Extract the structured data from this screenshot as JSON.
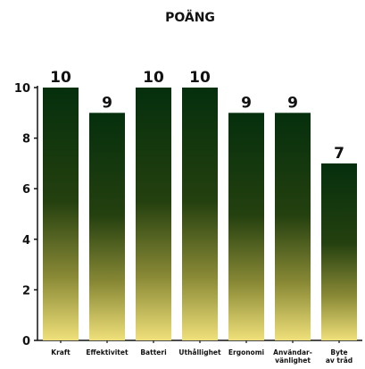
{
  "chart_data": {
    "type": "bar",
    "title": "POÄNG",
    "categories": [
      [
        "Kraft"
      ],
      [
        "Effektivitet"
      ],
      [
        "Batteri"
      ],
      [
        "Uthållighet"
      ],
      [
        "Ergonomi"
      ],
      [
        "Användar-",
        "vänlighet"
      ],
      [
        "Byte",
        "av tråd"
      ]
    ],
    "values": [
      10,
      9,
      10,
      10,
      9,
      9,
      7
    ],
    "ylim": [
      0,
      10
    ],
    "yticks": [
      0,
      2,
      4,
      6,
      8,
      10
    ],
    "grid": false,
    "colors": {
      "bar_top": "#052f0d",
      "bar_mid": "#3f4a14",
      "bar_bottom": "#efe07a",
      "axis": "#111111"
    }
  }
}
